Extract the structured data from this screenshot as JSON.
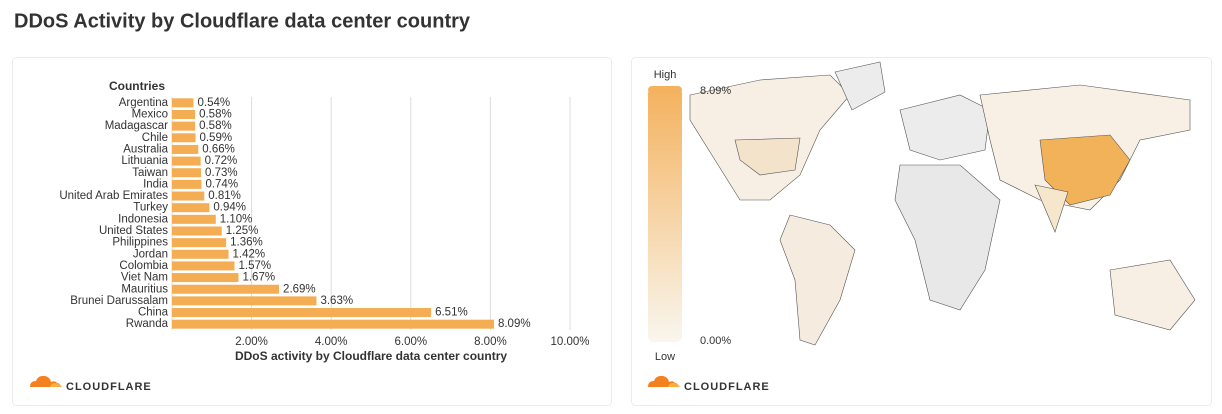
{
  "title": "DDoS Activity by Cloudflare data center country",
  "logo_text": "CLOUDFLARE",
  "chart_data": {
    "type": "bar",
    "orientation": "horizontal",
    "y_label": "Countries",
    "x_label": "DDoS activity by Cloudflare data center country",
    "categories": [
      "Argentina",
      "Mexico",
      "Madagascar",
      "Chile",
      "Australia",
      "Lithuania",
      "Taiwan",
      "India",
      "United Arab Emirates",
      "Turkey",
      "Indonesia",
      "United States",
      "Philippines",
      "Jordan",
      "Colombia",
      "Viet Nam",
      "Mauritius",
      "Brunei Darussalam",
      "China",
      "Rwanda"
    ],
    "values": [
      0.54,
      0.58,
      0.58,
      0.59,
      0.66,
      0.72,
      0.73,
      0.74,
      0.81,
      0.94,
      1.1,
      1.25,
      1.36,
      1.42,
      1.57,
      1.67,
      2.69,
      3.63,
      6.51,
      8.09
    ],
    "value_labels": [
      "0.54%",
      "0.58%",
      "0.58%",
      "0.59%",
      "0.66%",
      "0.72%",
      "0.73%",
      "0.74%",
      "0.81%",
      "0.94%",
      "1.10%",
      "1.25%",
      "1.36%",
      "1.42%",
      "1.57%",
      "1.67%",
      "2.69%",
      "3.63%",
      "6.51%",
      "8.09%"
    ],
    "color": "#f4ad52",
    "xlim": [
      0,
      10
    ],
    "xticks": [
      {
        "value": 2,
        "label": "2.00%"
      },
      {
        "value": 4,
        "label": "4.00%"
      },
      {
        "value": 6,
        "label": "6.00%"
      },
      {
        "value": 8,
        "label": "8.00%"
      },
      {
        "value": 10,
        "label": "10.00%"
      }
    ],
    "grid": true
  },
  "map": {
    "legend_high": "High",
    "legend_low": "Low",
    "scale_max": {
      "value": 8.09,
      "label": "8.09%"
    },
    "scale_min": {
      "value": 0,
      "label": "0.00%"
    }
  }
}
